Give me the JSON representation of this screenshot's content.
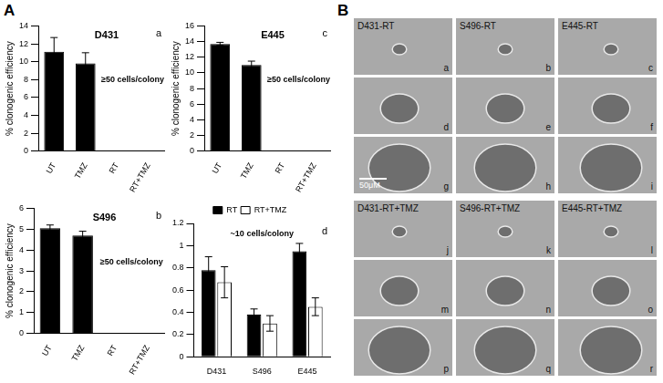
{
  "panel_labels": [
    "A",
    "B"
  ],
  "chart_data": [
    {
      "type": "bar",
      "panel": "a",
      "title": "D431",
      "y_label": "% clonogenic efficiency",
      "annotation": "≥50 cells/colony",
      "categories": [
        "UT",
        "TMZ",
        "RT",
        "RT+TMZ"
      ],
      "values": [
        11.1,
        9.8,
        0,
        0
      ],
      "errors": [
        1.6,
        1.2,
        0,
        0
      ],
      "color": "#000000",
      "ylim": [
        0,
        14
      ],
      "yticks": [
        0,
        2,
        4,
        6,
        8,
        10,
        12,
        14
      ],
      "grid": false
    },
    {
      "type": "bar",
      "panel": "c",
      "title": "E445",
      "y_label": "% clonogenic efficiency",
      "annotation": "≥50 cells/colony",
      "categories": [
        "UT",
        "TMZ",
        "RT",
        "RT+TMZ"
      ],
      "values": [
        13.7,
        11.0,
        0,
        0
      ],
      "errors": [
        0.2,
        0.5,
        0,
        0
      ],
      "color": "#000000",
      "ylim": [
        0,
        16
      ],
      "yticks": [
        0,
        2,
        4,
        6,
        8,
        10,
        12,
        14,
        16
      ],
      "grid": false
    },
    {
      "type": "bar",
      "panel": "b",
      "title": "S496",
      "y_label": "% clonogenic efficiency",
      "annotation": "≥50 cells/colony",
      "categories": [
        "UT",
        "TMZ",
        "RT",
        "RT+TMZ"
      ],
      "values": [
        5.05,
        4.7,
        0,
        0
      ],
      "errors": [
        0.15,
        0.2,
        0,
        0
      ],
      "color": "#000000",
      "ylim": [
        0,
        6
      ],
      "yticks": [
        0,
        1,
        2,
        3,
        4,
        5,
        6
      ],
      "grid": false
    },
    {
      "type": "bar",
      "panel": "d",
      "annotation": "~10 cells/colony",
      "categories": [
        "D431",
        "S496",
        "E445"
      ],
      "series": [
        {
          "name": "RT",
          "color": "#000000",
          "values": [
            0.78,
            0.38,
            0.95
          ],
          "errors": [
            0.12,
            0.05,
            0.07
          ]
        },
        {
          "name": "RT+TMZ",
          "color": "#ffffff",
          "values": [
            0.67,
            0.3,
            0.45
          ],
          "errors": [
            0.14,
            0.07,
            0.08
          ]
        }
      ],
      "legend": "top",
      "ylim": [
        0,
        1.2
      ],
      "yticks": [
        0,
        0.2,
        0.4,
        0.6,
        0.8,
        1,
        1.2
      ],
      "grid": false
    }
  ],
  "image_groups": [
    {
      "labels": [
        "D431-RT",
        "S496-RT",
        "E445-RT"
      ],
      "letters": [
        "a",
        "b",
        "c",
        "d",
        "e",
        "f",
        "g",
        "h",
        "i"
      ]
    },
    {
      "labels": [
        "D431-RT+TMZ",
        "S496-RT+TMZ",
        "E445-RT+TMZ"
      ],
      "letters": [
        "j",
        "k",
        "l",
        "m",
        "n",
        "o",
        "p",
        "q",
        "r"
      ]
    }
  ],
  "scale_bar": "50μM"
}
